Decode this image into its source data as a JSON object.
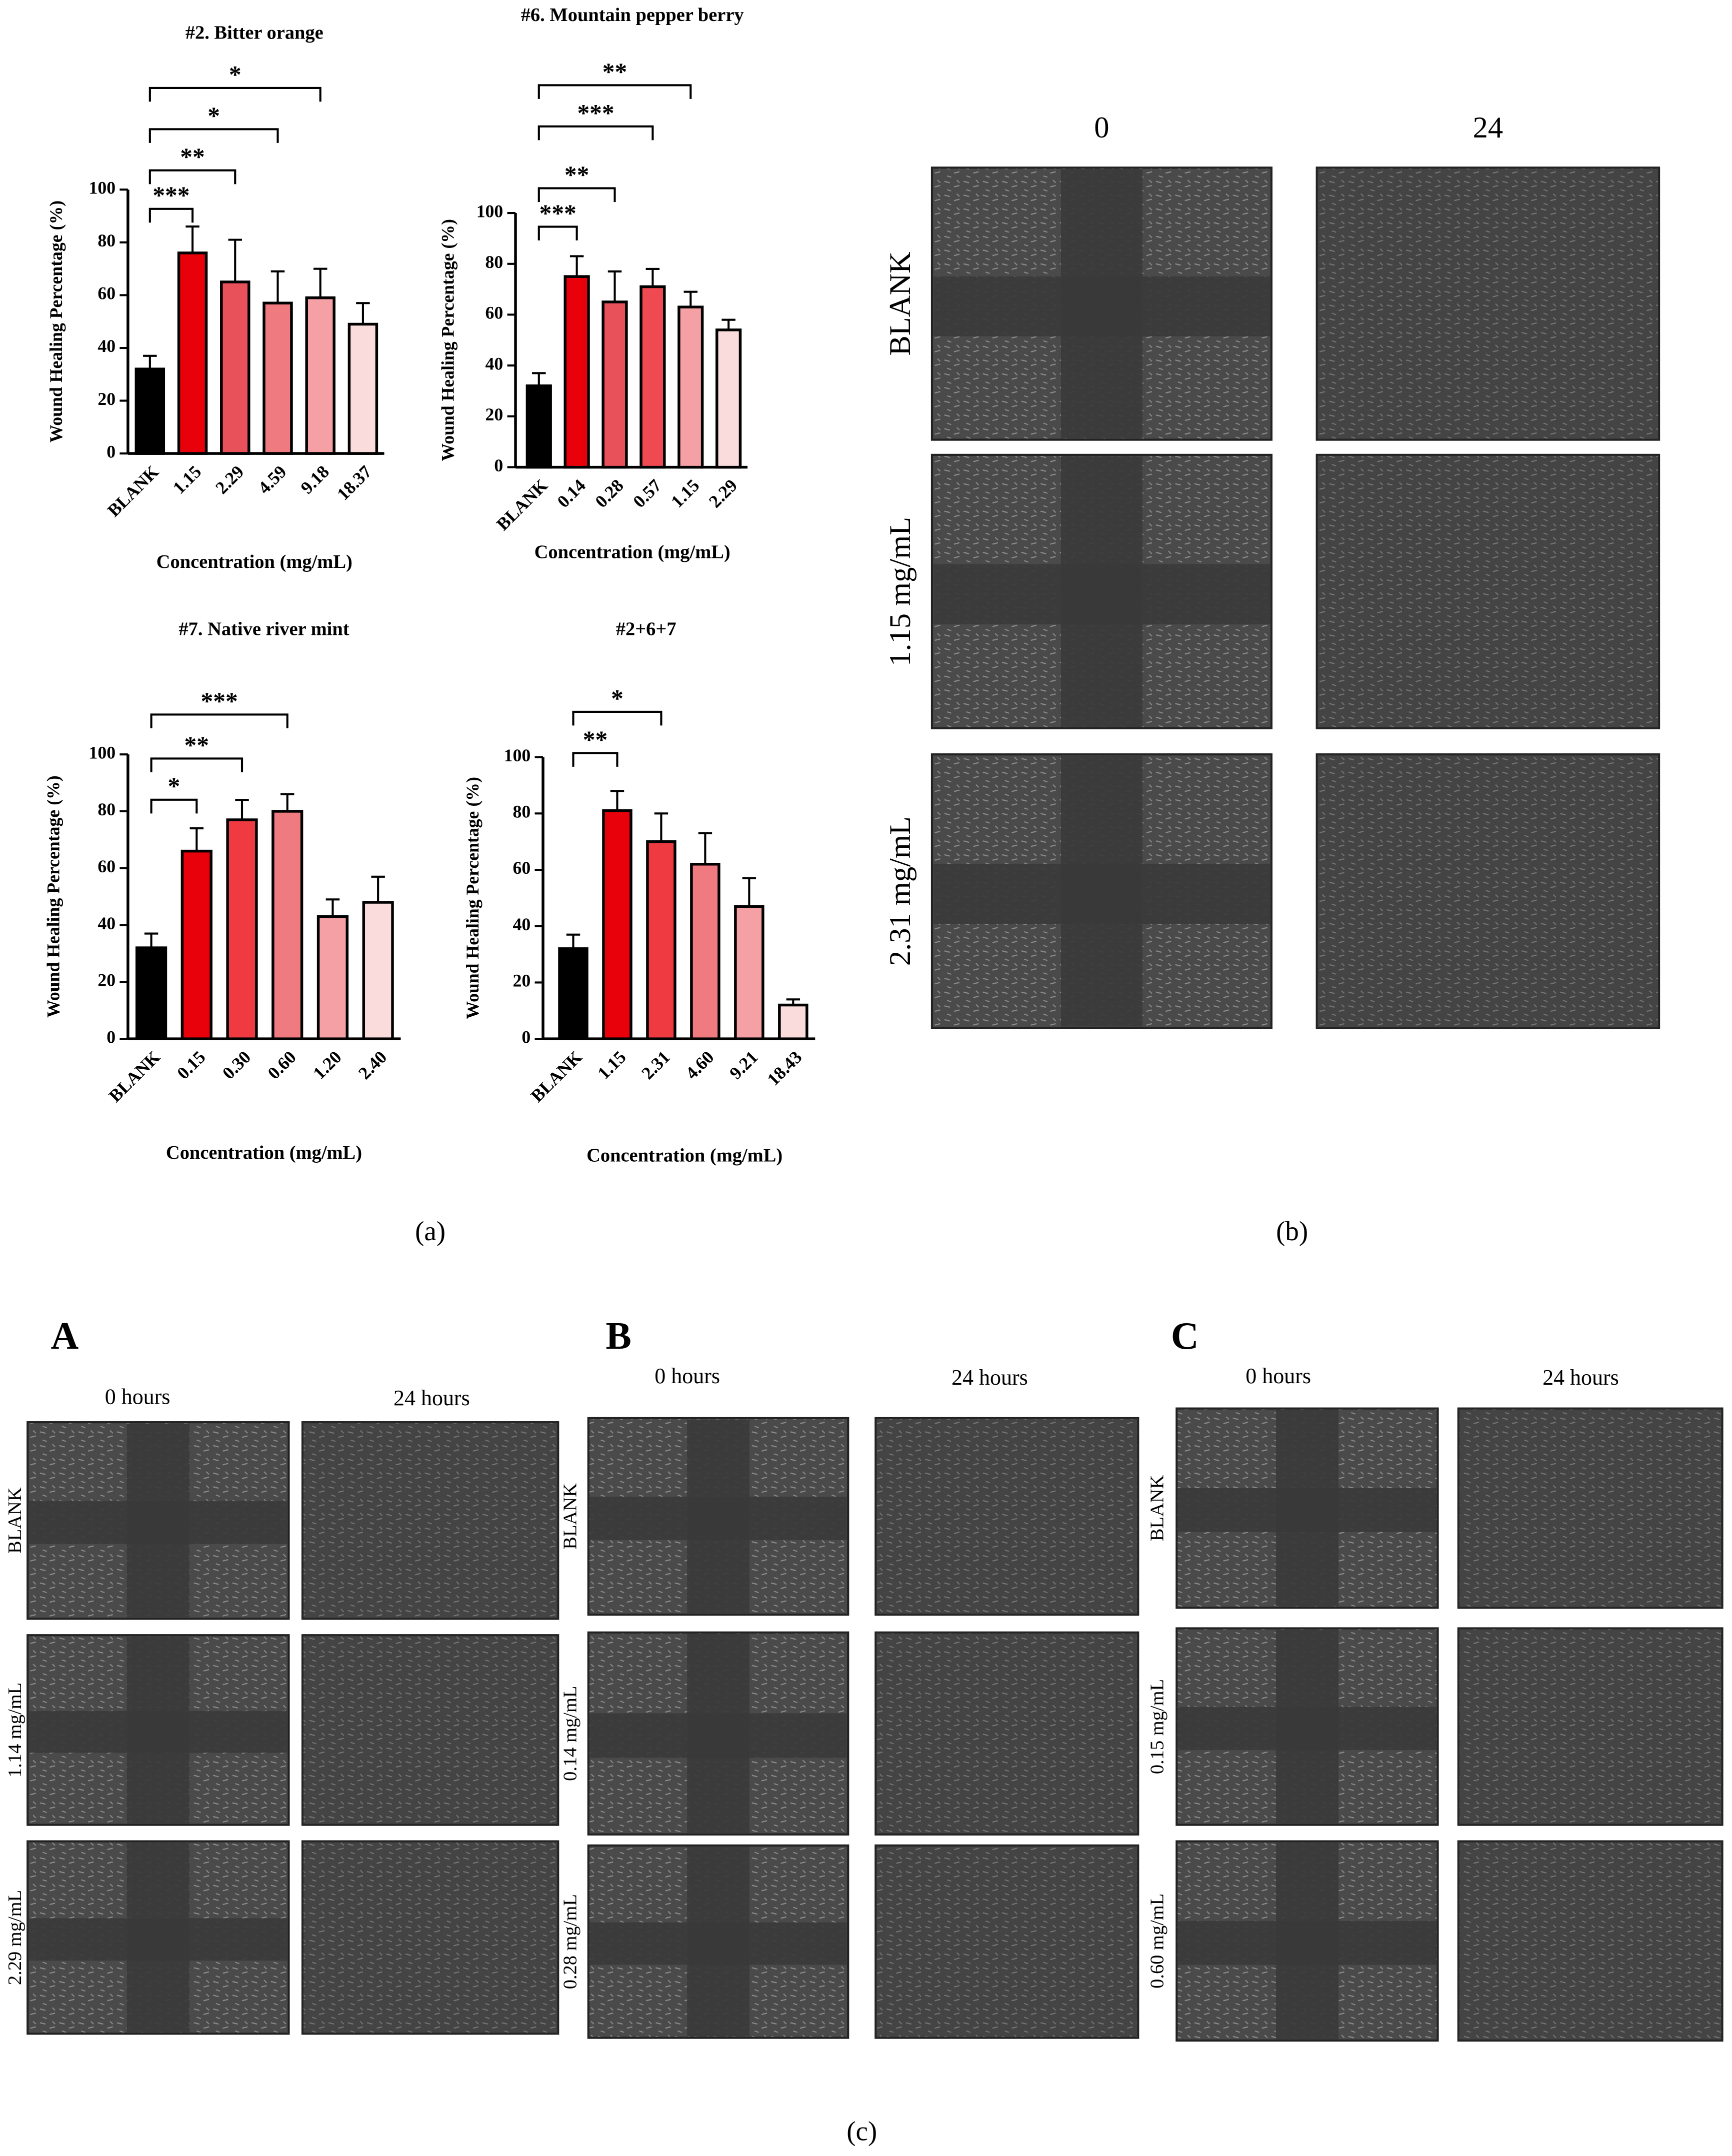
{
  "chart_data": [
    {
      "type": "bar",
      "title": "#2. Bitter orange",
      "xlabel": "Concentration (mg/mL)",
      "ylabel": "Wound Healing Percentage (%)",
      "categories": [
        "BLANK",
        "1.15",
        "2.29",
        "4.59",
        "9.18",
        "18.37"
      ],
      "values": [
        32,
        76,
        65,
        57,
        59,
        49
      ],
      "errors": [
        5,
        10,
        16,
        12,
        11,
        8
      ],
      "colors": [
        "#000000",
        "#e8000b",
        "#e8505a",
        "#ef7a80",
        "#f4a0a4",
        "#fbdcdc"
      ],
      "ylim": [
        0,
        100
      ],
      "yticks": [
        0,
        20,
        40,
        60,
        80,
        100
      ],
      "significance": [
        {
          "label": "***",
          "to": 1
        },
        {
          "label": "**",
          "to": 2
        },
        {
          "label": "*",
          "to": 3
        },
        {
          "label": "*",
          "to": 4
        }
      ]
    },
    {
      "type": "bar",
      "title": "#6.  Mountain pepper berry",
      "xlabel": "Concentration (mg/mL)",
      "ylabel": "Wound Healing Percentage (%)",
      "categories": [
        "BLANK",
        "0.14",
        "0.28",
        "0.57",
        "1.15",
        "2.29"
      ],
      "values": [
        32,
        75,
        65,
        71,
        63,
        54
      ],
      "errors": [
        5,
        8,
        12,
        7,
        6,
        4
      ],
      "colors": [
        "#000000",
        "#e8000b",
        "#e8505a",
        "#ef4a52",
        "#f4a0a4",
        "#fbdcdc"
      ],
      "ylim": [
        0,
        100
      ],
      "yticks": [
        0,
        20,
        40,
        60,
        80,
        100
      ],
      "significance": [
        {
          "label": "***",
          "to": 1
        },
        {
          "label": "**",
          "to": 2
        },
        {
          "label": "***",
          "to": 3
        },
        {
          "label": "**",
          "to": 4
        }
      ]
    },
    {
      "type": "bar",
      "title": "#7.  Native river mint",
      "xlabel": "Concentration (mg/mL)",
      "ylabel": "Wound Healing Percentage (%)",
      "categories": [
        "BLANK",
        "0.15",
        "0.30",
        "0.60",
        "1.20",
        "2.40"
      ],
      "values": [
        32,
        66,
        77,
        80,
        43,
        48
      ],
      "errors": [
        5,
        8,
        7,
        6,
        6,
        9
      ],
      "colors": [
        "#000000",
        "#e8000b",
        "#ef3a42",
        "#ef7a80",
        "#f4a0a4",
        "#fbdcdc"
      ],
      "ylim": [
        0,
        100
      ],
      "yticks": [
        0,
        20,
        40,
        60,
        80,
        100
      ],
      "significance": [
        {
          "label": "*",
          "to": 1
        },
        {
          "label": "**",
          "to": 2
        },
        {
          "label": "***",
          "to": 3
        }
      ]
    },
    {
      "type": "bar",
      "title": "#2+6+7",
      "xlabel": "Concentration (mg/mL)",
      "ylabel": "Wound Healing Percentage (%)",
      "categories": [
        "BLANK",
        "1.15",
        "2.31",
        "4.60",
        "9.21",
        "18.43"
      ],
      "values": [
        32,
        81,
        70,
        62,
        47,
        12
      ],
      "errors": [
        5,
        7,
        10,
        11,
        10,
        2
      ],
      "colors": [
        "#000000",
        "#e8000b",
        "#ef3a42",
        "#ef7a80",
        "#f4a0a4",
        "#fbdcdc"
      ],
      "ylim": [
        0,
        100
      ],
      "yticks": [
        0,
        20,
        40,
        60,
        80,
        100
      ],
      "significance": [
        {
          "label": "**",
          "to": 1
        },
        {
          "label": "*",
          "to": 2
        }
      ]
    }
  ],
  "panel_b": {
    "columns": [
      "0",
      "24"
    ],
    "rows": [
      "BLANK",
      "1.15 mg/mL",
      "2.31 mg/mL"
    ]
  },
  "panel_c": {
    "groups": [
      {
        "label": "A",
        "columns": [
          "0 hours",
          "24 hours"
        ],
        "rows": [
          "BLANK",
          "1.14 mg/mL",
          "2.29 mg/mL"
        ]
      },
      {
        "label": "B",
        "columns": [
          "0 hours",
          "24 hours"
        ],
        "rows": [
          "BLANK",
          "0.14 mg/mL",
          "0.28 mg/mL"
        ]
      },
      {
        "label": "C",
        "columns": [
          "0 hours",
          "24 hours"
        ],
        "rows": [
          "BLANK",
          "0.15  mg/mL",
          "0.60  mg/mL"
        ]
      }
    ]
  },
  "captions": [
    "(a)",
    "(b)",
    "(c)"
  ]
}
